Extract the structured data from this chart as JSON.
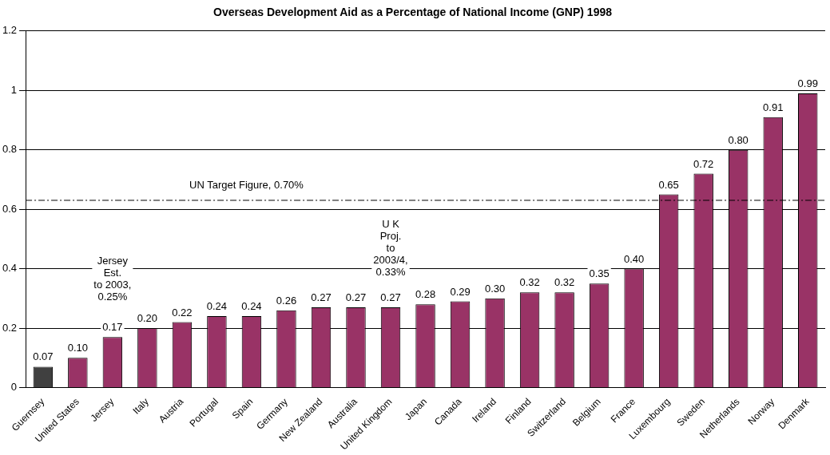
{
  "chart_data": {
    "type": "bar",
    "title": "Overseas Development Aid as a Percentage of National Income (GNP) 1998",
    "categories": [
      "Guernsey",
      "United States",
      "Jersey",
      "Italy",
      "Austria",
      "Portugal",
      "Spain",
      "Germany",
      "New Zealand",
      "Australia",
      "United Kingdom",
      "Japan",
      "Canada",
      "Ireland",
      "Finland",
      "Switzerland",
      "Belgium",
      "France",
      "Luxembourg",
      "Sweden",
      "Netherlands",
      "Norway",
      "Denmark"
    ],
    "values": [
      0.07,
      0.1,
      0.17,
      0.2,
      0.22,
      0.24,
      0.24,
      0.26,
      0.27,
      0.27,
      0.27,
      0.28,
      0.29,
      0.3,
      0.32,
      0.32,
      0.35,
      0.4,
      0.65,
      0.72,
      0.8,
      0.91,
      0.99
    ],
    "value_labels": [
      "0.07",
      "0.10",
      "0.17",
      "0.20",
      "0.22",
      "0.24",
      "0.24",
      "0.26",
      "0.27",
      "0.27",
      "0.27",
      "0.28",
      "0.29",
      "0.30",
      "0.32",
      "0.32",
      "0.35",
      "0.40",
      "0.65",
      "0.72",
      "0.80",
      "0.91",
      "0.99"
    ],
    "colors": [
      "#404040",
      "#993366",
      "#993366",
      "#993366",
      "#993366",
      "#993366",
      "#993366",
      "#993366",
      "#993366",
      "#993366",
      "#993366",
      "#993366",
      "#993366",
      "#993366",
      "#993366",
      "#993366",
      "#993366",
      "#993366",
      "#993366",
      "#993366",
      "#993366",
      "#993366",
      "#993366"
    ],
    "ylim": [
      0,
      1.2
    ],
    "yticks": [
      0,
      0.2,
      0.4,
      0.6,
      0.8,
      1,
      1.2
    ],
    "grid": "y",
    "legend": false,
    "ref_lines": [
      {
        "axis": "y",
        "value": 0.63,
        "label": "UN Target Figure, 0.70%",
        "color": "#000000",
        "line_style": "dashdot"
      }
    ],
    "annotations": [
      "Jersey\nEst.\nto 2003,\n0.25%",
      "U K\nProj.\nto\n2003/4,\n0.33%"
    ]
  }
}
